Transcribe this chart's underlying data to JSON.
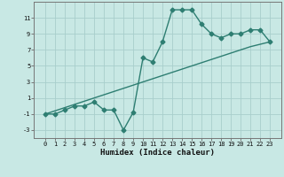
{
  "x": [
    0,
    1,
    2,
    3,
    4,
    5,
    6,
    7,
    8,
    9,
    10,
    11,
    12,
    13,
    14,
    15,
    16,
    17,
    18,
    19,
    20,
    21,
    22,
    23
  ],
  "y_data": [
    -1,
    -1,
    -0.5,
    0,
    0,
    0.5,
    -0.5,
    -0.5,
    -3,
    -0.8,
    6,
    5.5,
    8.0,
    12,
    12,
    12,
    10.2,
    9.0,
    8.5,
    9.0,
    9.0,
    9.5,
    9.5,
    8.0
  ],
  "y_trend": [
    -1.0,
    -0.6,
    -0.2,
    0.2,
    0.6,
    1.0,
    1.4,
    1.8,
    2.2,
    2.6,
    3.0,
    3.4,
    3.8,
    4.2,
    4.6,
    5.0,
    5.4,
    5.8,
    6.2,
    6.6,
    7.0,
    7.4,
    7.7,
    8.0
  ],
  "xlabel": "Humidex (Indice chaleur)",
  "color": "#2E7E72",
  "bg_color": "#C8E8E4",
  "grid_color": "#A8CECC",
  "ylim": [
    -4,
    13
  ],
  "yticks": [
    -3,
    -1,
    1,
    3,
    5,
    7,
    9,
    11
  ],
  "xticks": [
    0,
    1,
    2,
    3,
    4,
    5,
    6,
    7,
    8,
    9,
    10,
    11,
    12,
    13,
    14,
    15,
    16,
    17,
    18,
    19,
    20,
    21,
    22,
    23
  ],
  "markersize": 2.5,
  "linewidth": 1.0
}
